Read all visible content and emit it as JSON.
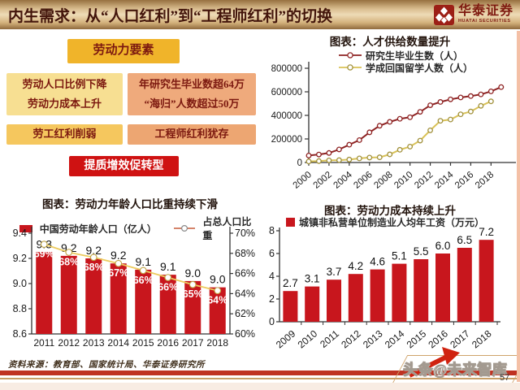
{
  "header": {
    "title": "内生需求：从“人口红利”到“工程师红利”的切换",
    "logo_text": "华泰证券",
    "logo_subtext": "HUATAI SECURITIES"
  },
  "flow": {
    "header": "劳动力要素",
    "cells": {
      "left_top": [
        "劳动人口比例下降",
        "劳动力成本上升"
      ],
      "right_top": [
        "年研究生毕业数超64万",
        "“海归”人数超过50万"
      ],
      "left_bottom": "劳工红利削弱",
      "right_bottom": "工程师红利犹存"
    },
    "conclusion": "提质增效促转型"
  },
  "chart_data": [
    {
      "id": "talent-supply",
      "type": "line",
      "title": "图表：人才供给数量提升",
      "ylim": [
        0,
        800000
      ],
      "yticks": [
        0,
        200000,
        400000,
        600000,
        800000
      ],
      "xticks": [
        2000,
        2002,
        2004,
        2006,
        2008,
        2010,
        2012,
        2014,
        2016,
        2018
      ],
      "series": [
        {
          "name": "研究生毕业生数（人）",
          "color": "#8e2323",
          "x": [
            2000,
            2001,
            2002,
            2003,
            2004,
            2005,
            2006,
            2007,
            2008,
            2009,
            2010,
            2011,
            2012,
            2013,
            2014,
            2015,
            2016,
            2017,
            2018,
            2019
          ],
          "values": [
            59000,
            68000,
            81000,
            111000,
            151000,
            190000,
            256000,
            312000,
            345000,
            371000,
            384000,
            430000,
            486000,
            514000,
            536000,
            552000,
            564000,
            578000,
            604000,
            640000
          ]
        },
        {
          "name": "学成回国留学人数（人）",
          "color": "#d9c257",
          "marker_stroke": "#a1913c",
          "x": [
            2000,
            2001,
            2002,
            2003,
            2004,
            2005,
            2006,
            2007,
            2008,
            2009,
            2010,
            2011,
            2012,
            2013,
            2014,
            2015,
            2016,
            2017,
            2018
          ],
          "values": [
            9000,
            12000,
            18000,
            20000,
            25000,
            35000,
            42000,
            44000,
            69000,
            108000,
            135000,
            186000,
            273000,
            354000,
            365000,
            409000,
            433000,
            481000,
            519000
          ]
        }
      ]
    },
    {
      "id": "working-age",
      "type": "bar-line",
      "title": "图表：劳动力年龄人口比重持续下滑",
      "categories": [
        "2011",
        "2012",
        "2013",
        "2014",
        "2015",
        "2016",
        "2017",
        "2018"
      ],
      "bar_series": {
        "name": "中国劳动年龄人口（亿人）",
        "color": "#c8161d",
        "values": [
          9.25,
          9.22,
          9.2,
          9.16,
          9.11,
          9.07,
          9.02,
          8.97
        ],
        "labels": [
          "9.3",
          "9.2",
          "9.2",
          "9.2",
          "9.1",
          "9.1",
          "9.0",
          "9.0"
        ]
      },
      "line_series": {
        "name": "占总人口比重",
        "color": "#eccb5e",
        "marker_stroke": "#c0a445",
        "values": [
          68.9,
          68.1,
          67.6,
          67.0,
          66.3,
          65.6,
          64.9,
          64.3
        ],
        "labels": [
          "69%",
          "68%",
          "68%",
          "67%",
          "66%",
          "66%",
          "65%",
          "64%"
        ]
      },
      "left_ylim": [
        8.6,
        9.4
      ],
      "left_yticks": [
        9.4,
        9.2,
        9.0,
        8.8,
        8.6
      ],
      "right_ylim": [
        60,
        70
      ],
      "right_yticks": [
        70,
        68,
        66,
        64,
        62,
        60
      ]
    },
    {
      "id": "labor-cost",
      "type": "bar",
      "title": "图表：劳动力成本持续上升",
      "legend": "城镇非私营单位制造业人均年工资（万元）",
      "bar_color": "#c8161d",
      "categories": [
        "2009",
        "2010",
        "2011",
        "2012",
        "2013",
        "2014",
        "2015",
        "2016",
        "2017",
        "2018"
      ],
      "values": [
        2.7,
        3.1,
        3.7,
        4.2,
        4.6,
        5.1,
        5.5,
        6.0,
        6.5,
        7.2
      ],
      "labels": [
        "2.7",
        "3.1",
        "3.7",
        "4.2",
        "4.6",
        "5.1",
        "5.5",
        "6.0",
        "6.5",
        "7.2"
      ],
      "ylim": [
        0,
        8
      ],
      "yticks": [
        0,
        2,
        4,
        6,
        8
      ]
    }
  ],
  "footer": {
    "source": "资料来源：教育部、国家统计局、华泰证券研究所",
    "watermark": "头条@未来智库",
    "page_number": "57"
  },
  "palette": {
    "bar_red": "#c8161d",
    "dark_red_line": "#8e2323",
    "yellow_line": "#d9c257",
    "title_bar_text": "#43150b",
    "box_text_red": "#7c1910",
    "action_red": "#cf1212"
  }
}
